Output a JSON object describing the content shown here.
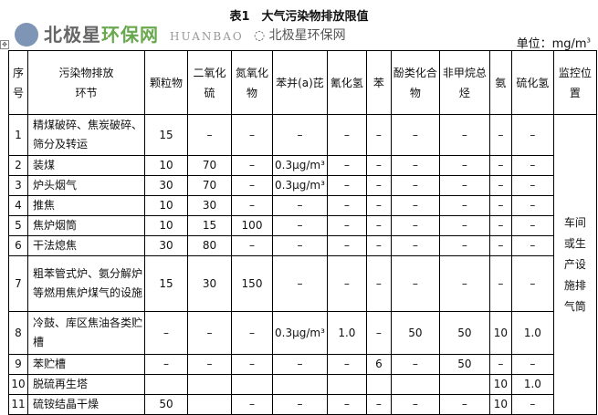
{
  "title": "表1　大气污染物排放限值",
  "unit": "单位：mg/m",
  "unit_sup": "3",
  "table": {
    "headers": [
      "序号",
      "污染物排放环节",
      "颗粒物",
      "二氧化硫",
      "氮氧化物",
      "苯并(a)芘",
      "氰化氢",
      "苯",
      "酚类化合物",
      "非甲烷总烃",
      "氨",
      "硫化氢",
      "监控位置"
    ],
    "rows": [
      {
        "no": "1",
        "name": "精煤破碎、焦炭破碎、筛分及转运",
        "v": [
          "15",
          "–",
          "–",
          "–",
          "–",
          "–",
          "–",
          "–",
          "–",
          "–"
        ]
      },
      {
        "no": "2",
        "name": "装煤",
        "v": [
          "10",
          "70",
          "–",
          "0.3μg/m³",
          "–",
          "–",
          "–",
          "–",
          "–",
          "–"
        ]
      },
      {
        "no": "3",
        "name": "炉头烟气",
        "v": [
          "30",
          "70",
          "–",
          "0.3μg/m³",
          "–",
          "–",
          "–",
          "–",
          "–",
          "–"
        ]
      },
      {
        "no": "4",
        "name": "推焦",
        "v": [
          "10",
          "30",
          "–",
          "–",
          "–",
          "–",
          "–",
          "–",
          "–",
          "–"
        ]
      },
      {
        "no": "5",
        "name": "焦炉烟筒",
        "v": [
          "10",
          "15",
          "100",
          "–",
          "–",
          "–",
          "–",
          "–",
          "–",
          "–"
        ]
      },
      {
        "no": "6",
        "name": "干法熄焦",
        "v": [
          "30",
          "80",
          "–",
          "–",
          "–",
          "–",
          "–",
          "–",
          "–",
          "–"
        ]
      },
      {
        "no": "7",
        "name": "粗苯管式炉、氨分解炉等燃用焦炉煤气的设施",
        "v": [
          "15",
          "30",
          "150",
          "–",
          "–",
          "–",
          "–",
          "–",
          "–",
          "–"
        ]
      },
      {
        "no": "8",
        "name": "冷鼓、库区焦油各类贮槽",
        "v": [
          "–",
          "–",
          "–",
          "0.3μg/m³",
          "1.0",
          "–",
          "50",
          "50",
          "10",
          "1.0"
        ]
      },
      {
        "no": "9",
        "name": "苯贮槽",
        "v": [
          "–",
          "–",
          "–",
          "–",
          "–",
          "6",
          "–",
          "50",
          "–",
          "–"
        ]
      },
      {
        "no": "10",
        "name": "脱硫再生塔",
        "v": [
          "",
          "",
          "",
          "",
          "",
          "",
          "",
          "",
          "10",
          "1.0"
        ]
      },
      {
        "no": "11",
        "name": "硫铵结晶干燥",
        "v": [
          "50",
          "",
          "–",
          "–",
          "–",
          "–",
          "–",
          "–",
          "10",
          "–"
        ]
      }
    ],
    "monitor": "车间或生产设施排气筒"
  },
  "watermark": {
    "brand": "北极星环保网",
    "latin": "HUANBAO",
    "wechat": "北极星环保网"
  }
}
